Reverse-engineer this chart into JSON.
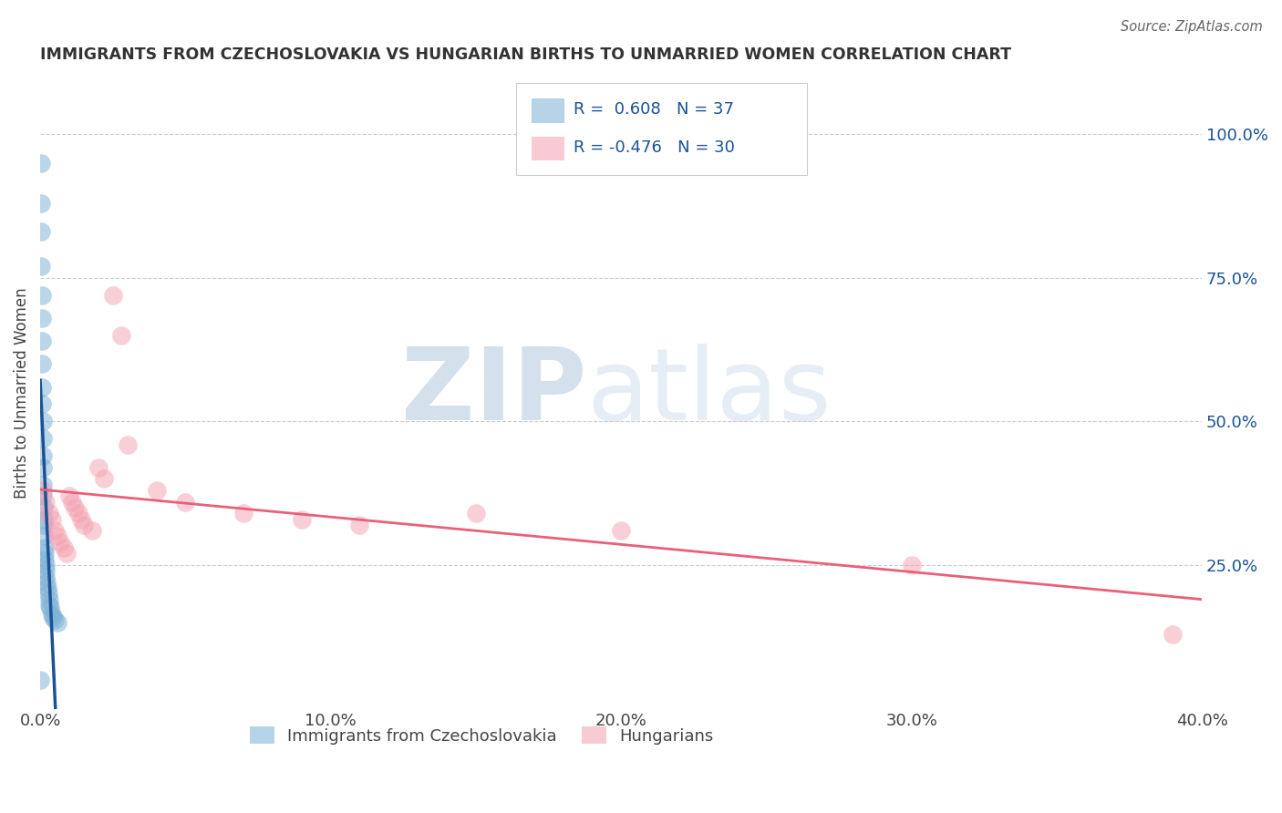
{
  "title": "IMMIGRANTS FROM CZECHOSLOVAKIA VS HUNGARIAN BIRTHS TO UNMARRIED WOMEN CORRELATION CHART",
  "source": "Source: ZipAtlas.com",
  "ylabel": "Births to Unmarried Women",
  "r_blue": 0.608,
  "n_blue": 37,
  "r_pink": -0.476,
  "n_pink": 30,
  "blue_color": "#7BAFD4",
  "pink_color": "#F4A0B0",
  "blue_line_color": "#1A5294",
  "pink_line_color": "#E8607A",
  "background_color": "#FFFFFF",
  "xlim": [
    0.0,
    0.4
  ],
  "ylim": [
    0.0,
    1.1
  ],
  "xticks": [
    0.0,
    0.1,
    0.2,
    0.3,
    0.4
  ],
  "yticks_right": [
    0.25,
    0.5,
    0.75,
    1.0
  ],
  "blue_scatter_x": [
    0.0,
    0.0002,
    0.0003,
    0.0003,
    0.0004,
    0.0005,
    0.0005,
    0.0006,
    0.0006,
    0.0007,
    0.0007,
    0.0008,
    0.0008,
    0.0009,
    0.0009,
    0.001,
    0.001,
    0.0011,
    0.0011,
    0.0012,
    0.0013,
    0.0014,
    0.0015,
    0.0016,
    0.0017,
    0.0018,
    0.002,
    0.0022,
    0.0025,
    0.0028,
    0.003,
    0.0032,
    0.0035,
    0.004,
    0.0045,
    0.005,
    0.0058
  ],
  "blue_scatter_y": [
    0.05,
    0.95,
    0.88,
    0.83,
    0.77,
    0.72,
    0.68,
    0.64,
    0.6,
    0.56,
    0.53,
    0.5,
    0.47,
    0.44,
    0.42,
    0.39,
    0.37,
    0.35,
    0.33,
    0.32,
    0.3,
    0.28,
    0.27,
    0.26,
    0.25,
    0.24,
    0.23,
    0.22,
    0.21,
    0.2,
    0.19,
    0.18,
    0.175,
    0.165,
    0.16,
    0.155,
    0.15
  ],
  "pink_scatter_x": [
    0.001,
    0.002,
    0.003,
    0.004,
    0.005,
    0.006,
    0.007,
    0.008,
    0.009,
    0.01,
    0.011,
    0.012,
    0.013,
    0.014,
    0.015,
    0.018,
    0.02,
    0.022,
    0.025,
    0.028,
    0.03,
    0.04,
    0.05,
    0.07,
    0.09,
    0.11,
    0.15,
    0.2,
    0.3,
    0.39
  ],
  "pink_scatter_y": [
    0.38,
    0.36,
    0.34,
    0.33,
    0.31,
    0.3,
    0.29,
    0.28,
    0.27,
    0.37,
    0.36,
    0.35,
    0.34,
    0.33,
    0.32,
    0.31,
    0.42,
    0.4,
    0.72,
    0.65,
    0.46,
    0.38,
    0.36,
    0.34,
    0.33,
    0.32,
    0.34,
    0.31,
    0.25,
    0.13
  ],
  "legend_label_blue": "Immigrants from Czechoslovakia",
  "legend_label_pink": "Hungarians"
}
